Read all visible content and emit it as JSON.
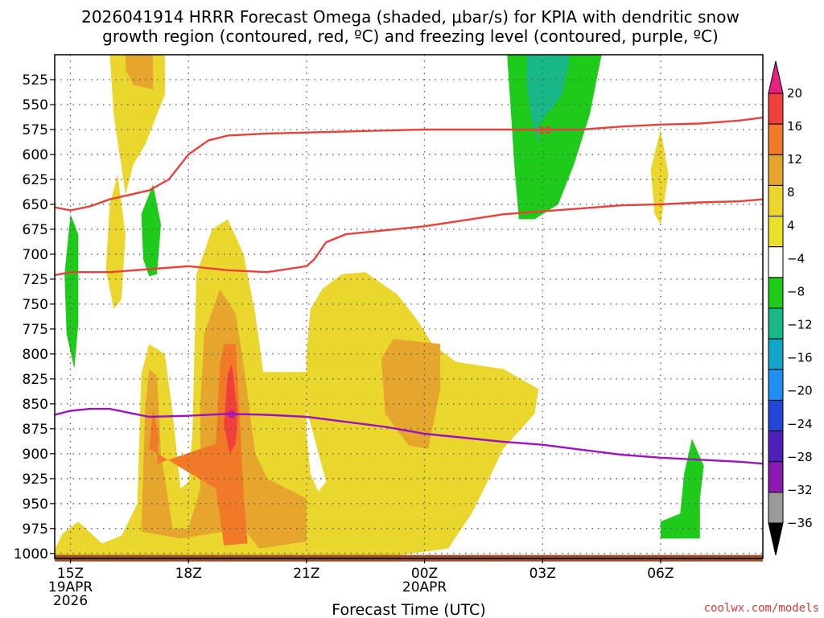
{
  "chart_data": {
    "type": "time-height contour",
    "title_line1": "2026041914 HRRR Forecast Omega (shaded, μbar/s) for KPIA with dendritic snow",
    "title_line2": "growth region (contoured, red, ºC) and freezing level (contoured, purple, ºC)",
    "xlabel": "Forecast Time (UTC)",
    "credit": "coolwx.com/models",
    "y_axis": {
      "unit": "hPa",
      "range": [
        1005,
        500
      ],
      "ticks": [
        525,
        550,
        575,
        600,
        625,
        650,
        675,
        700,
        725,
        750,
        775,
        800,
        825,
        850,
        875,
        900,
        925,
        950,
        975,
        1000
      ]
    },
    "x_axis": {
      "range_hours": [
        14.6,
        32.6
      ],
      "ticks": [
        {
          "hour": 15,
          "label": "15Z",
          "sub1": "19APR",
          "sub2": "2026"
        },
        {
          "hour": 18,
          "label": "18Z",
          "sub1": "",
          "sub2": ""
        },
        {
          "hour": 21,
          "label": "21Z",
          "sub1": "",
          "sub2": ""
        },
        {
          "hour": 24,
          "label": "00Z",
          "sub1": "20APR",
          "sub2": ""
        },
        {
          "hour": 27,
          "label": "03Z",
          "sub1": "",
          "sub2": ""
        },
        {
          "hour": 30,
          "label": "06Z",
          "sub1": "",
          "sub2": ""
        }
      ]
    },
    "colorbar": {
      "labels": [
        "20",
        "16",
        "12",
        "8",
        "4",
        "−4",
        "−8",
        "−12",
        "−16",
        "−20",
        "−24",
        "−28",
        "−32",
        "−36"
      ],
      "colors": [
        "#e8207f",
        "#f0403c",
        "#f07a28",
        "#e6a62e",
        "#ead62c",
        "#e8e22a",
        "#ffffff",
        "#1ecb1a",
        "#1ab888",
        "#14a6c8",
        "#1e8ef0",
        "#2246d8",
        "#4d20b8",
        "#8a1ab0",
        "#9a9a9a",
        "#000000"
      ]
    },
    "contours": {
      "dgz_minus18_label": "18",
      "dgz_top": [
        [
          14.6,
          653
        ],
        [
          15,
          656
        ],
        [
          15.5,
          652
        ],
        [
          16,
          645
        ],
        [
          17,
          636
        ],
        [
          17.5,
          625
        ],
        [
          18,
          600
        ],
        [
          18.5,
          586
        ],
        [
          19,
          581
        ],
        [
          20,
          579
        ],
        [
          21,
          578
        ],
        [
          22,
          577
        ],
        [
          23,
          576
        ],
        [
          24,
          575
        ],
        [
          25,
          575
        ],
        [
          26,
          575
        ],
        [
          27,
          575
        ],
        [
          28,
          575
        ],
        [
          29,
          572
        ],
        [
          30,
          570
        ],
        [
          31,
          569
        ],
        [
          32,
          566
        ],
        [
          32.6,
          563
        ]
      ],
      "dgz_bottom": [
        [
          14.6,
          721
        ],
        [
          15,
          718
        ],
        [
          16,
          718
        ],
        [
          17,
          715
        ],
        [
          18,
          712
        ],
        [
          19,
          716
        ],
        [
          20,
          718
        ],
        [
          21,
          712
        ],
        [
          21.2,
          705
        ],
        [
          21.5,
          688
        ],
        [
          22,
          680
        ],
        [
          23,
          676
        ],
        [
          24,
          672
        ],
        [
          25,
          666
        ],
        [
          26,
          660
        ],
        [
          27,
          657
        ],
        [
          28,
          654
        ],
        [
          29,
          651
        ],
        [
          30,
          650
        ],
        [
          31,
          648
        ],
        [
          32,
          647
        ],
        [
          32.6,
          645
        ]
      ],
      "freezing_level_label": "0",
      "freezing_level": [
        [
          14.6,
          861
        ],
        [
          15,
          857
        ],
        [
          15.5,
          855
        ],
        [
          16,
          855
        ],
        [
          17,
          863
        ],
        [
          18,
          862
        ],
        [
          19,
          860
        ],
        [
          20,
          861
        ],
        [
          21,
          863
        ],
        [
          22,
          868
        ],
        [
          23,
          873
        ],
        [
          24,
          880
        ],
        [
          25,
          884
        ],
        [
          26,
          888
        ],
        [
          27,
          891
        ],
        [
          28,
          896
        ],
        [
          29,
          901
        ],
        [
          30,
          904
        ],
        [
          31,
          906
        ],
        [
          32,
          908
        ],
        [
          32.6,
          910
        ]
      ]
    },
    "omega_regions": [
      {
        "value_band": "4 to 8",
        "color": "#ead62c",
        "polygon": [
          [
            16.0,
            500
          ],
          [
            17.4,
            500
          ],
          [
            17.4,
            540
          ],
          [
            16.9,
            590
          ],
          [
            16.6,
            610
          ],
          [
            16.4,
            640
          ],
          [
            16.1,
            560
          ]
        ]
      },
      {
        "value_band": "8 to 12",
        "color": "#e6a62e",
        "polygon": [
          [
            16.4,
            500
          ],
          [
            17.1,
            500
          ],
          [
            17.1,
            535
          ],
          [
            16.6,
            530
          ],
          [
            16.4,
            515
          ]
        ]
      },
      {
        "value_band": "4 to 8",
        "color": "#ead62c",
        "polygon": [
          [
            16.0,
            650
          ],
          [
            16.2,
            620
          ],
          [
            16.4,
            680
          ],
          [
            16.3,
            745
          ],
          [
            16.1,
            755
          ],
          [
            15.9,
            715
          ]
        ]
      },
      {
        "value_band": "4 to 8",
        "color": "#ead62c",
        "polygon": [
          [
            29.75,
            615
          ],
          [
            30.0,
            575
          ],
          [
            30.2,
            620
          ],
          [
            30.0,
            670
          ],
          [
            29.85,
            660
          ]
        ]
      },
      {
        "value_band": "4 to 8",
        "color": "#ead62c",
        "polygon": [
          [
            14.55,
            1000
          ],
          [
            14.8,
            980
          ],
          [
            15.2,
            968
          ],
          [
            15.8,
            990
          ],
          [
            16.3,
            982
          ],
          [
            16.7,
            950
          ],
          [
            16.8,
            820
          ],
          [
            17.0,
            790
          ],
          [
            17.4,
            800
          ],
          [
            17.6,
            860
          ],
          [
            17.8,
            935
          ],
          [
            18.0,
            928
          ],
          [
            18.1,
            880
          ],
          [
            18.2,
            720
          ],
          [
            18.6,
            675
          ],
          [
            19.0,
            665
          ],
          [
            19.4,
            700
          ],
          [
            19.7,
            760
          ],
          [
            19.9,
            818
          ],
          [
            21.0,
            818
          ],
          [
            21.0,
            880
          ],
          [
            21.1,
            920
          ],
          [
            21.3,
            938
          ],
          [
            21.5,
            928
          ],
          [
            21.0,
            855
          ],
          [
            21.0,
            800
          ],
          [
            21.1,
            755
          ],
          [
            21.4,
            735
          ],
          [
            21.9,
            720
          ],
          [
            22.5,
            718
          ],
          [
            23.3,
            740
          ],
          [
            23.8,
            765
          ],
          [
            24.2,
            790
          ],
          [
            24.8,
            808
          ],
          [
            26.0,
            815
          ],
          [
            26.9,
            835
          ],
          [
            26.8,
            860
          ],
          [
            26.0,
            895
          ],
          [
            25.6,
            928
          ],
          [
            25.2,
            960
          ],
          [
            24.6,
            995
          ],
          [
            23.3,
            1002
          ],
          [
            22.0,
            1003
          ],
          [
            20.5,
            1005
          ],
          [
            18.0,
            1005
          ],
          [
            14.55,
            1005
          ]
        ]
      },
      {
        "value_band": "8 to 12",
        "color": "#e6a62e",
        "polygon": [
          [
            16.8,
            978
          ],
          [
            16.9,
            855
          ],
          [
            17.0,
            815
          ],
          [
            17.2,
            822
          ],
          [
            17.3,
            900
          ],
          [
            17.6,
            975
          ],
          [
            18.0,
            975
          ],
          [
            18.3,
            935
          ],
          [
            18.3,
            850
          ],
          [
            18.4,
            780
          ],
          [
            18.8,
            735
          ],
          [
            19.2,
            760
          ],
          [
            19.4,
            810
          ],
          [
            19.7,
            900
          ],
          [
            20.0,
            925
          ],
          [
            21.0,
            945
          ],
          [
            21.0,
            988
          ],
          [
            19.8,
            995
          ],
          [
            19.4,
            975
          ],
          [
            17.8,
            985
          ]
        ]
      },
      {
        "value_band": "12 to 16",
        "color": "#f07a28",
        "polygon": [
          [
            17.0,
            895
          ],
          [
            17.1,
            855
          ],
          [
            17.25,
            885
          ],
          [
            17.2,
            910
          ],
          [
            18.7,
            890
          ],
          [
            18.8,
            810
          ],
          [
            18.9,
            790
          ],
          [
            19.2,
            790
          ],
          [
            19.3,
            860
          ],
          [
            19.4,
            940
          ],
          [
            19.5,
            990
          ],
          [
            18.9,
            992
          ],
          [
            18.7,
            935
          ]
        ]
      },
      {
        "value_band": "16 to 20",
        "color": "#f0403c",
        "polygon": [
          [
            18.9,
            870
          ],
          [
            19.0,
            820
          ],
          [
            19.1,
            810
          ],
          [
            19.25,
            860
          ],
          [
            19.2,
            890
          ],
          [
            19.05,
            900
          ]
        ]
      },
      {
        "value_band": "8 to 12",
        "color": "#e6a62e",
        "polygon": [
          [
            22.9,
            805
          ],
          [
            23.2,
            785
          ],
          [
            24.4,
            790
          ],
          [
            24.4,
            835
          ],
          [
            24.1,
            895
          ],
          [
            23.6,
            892
          ],
          [
            23.0,
            860
          ]
        ]
      },
      {
        "value_band": "-4 to -8",
        "color": "#1ecb1a",
        "polygon": [
          [
            26.1,
            500
          ],
          [
            28.5,
            500
          ],
          [
            28.2,
            560
          ],
          [
            27.8,
            610
          ],
          [
            27.4,
            650
          ],
          [
            26.8,
            665
          ],
          [
            26.4,
            665
          ],
          [
            26.3,
            620
          ],
          [
            26.2,
            560
          ]
        ]
      },
      {
        "value_band": "-8 to -12",
        "color": "#1ab888",
        "polygon": [
          [
            26.6,
            500
          ],
          [
            27.7,
            500
          ],
          [
            27.5,
            540
          ],
          [
            26.9,
            570
          ],
          [
            26.9,
            590
          ],
          [
            26.7,
            560
          ],
          [
            26.6,
            530
          ]
        ]
      },
      {
        "value_band": "-4 to -8",
        "color": "#1ecb1a",
        "polygon": [
          [
            14.85,
            720
          ],
          [
            15.0,
            660
          ],
          [
            15.2,
            680
          ],
          [
            15.2,
            770
          ],
          [
            15.1,
            815
          ],
          [
            14.9,
            780
          ]
        ]
      },
      {
        "value_band": "-4 to -8",
        "color": "#1ecb1a",
        "polygon": [
          [
            16.8,
            660
          ],
          [
            17.1,
            630
          ],
          [
            17.3,
            670
          ],
          [
            17.2,
            720
          ],
          [
            17.0,
            722
          ],
          [
            16.85,
            705
          ]
        ]
      },
      {
        "value_band": "-4 to -8",
        "color": "#1ecb1a",
        "polygon": [
          [
            30.0,
            968
          ],
          [
            30.5,
            960
          ],
          [
            30.6,
            920
          ],
          [
            30.8,
            885
          ],
          [
            31.1,
            912
          ],
          [
            31.0,
            945
          ],
          [
            31.0,
            985
          ],
          [
            30.0,
            985
          ]
        ]
      }
    ]
  }
}
